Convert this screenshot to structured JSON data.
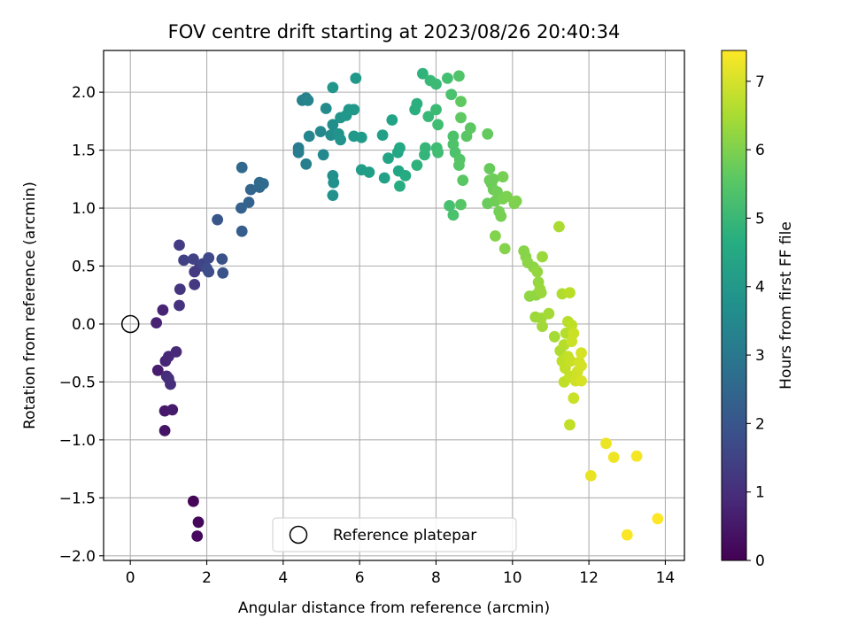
{
  "chart_data": {
    "type": "scatter",
    "title": "FOV centre drift starting at 2023/08/26 20:40:34",
    "xlabel": "Angular distance from reference (arcmin)",
    "ylabel": "Rotation from reference (arcmin)",
    "colorbar_label": "Hours from first FF file",
    "xlim": [
      -0.7,
      14.5
    ],
    "ylim": [
      -2.04,
      2.36
    ],
    "clim": [
      0,
      7.45
    ],
    "x_ticks": [
      0,
      2,
      4,
      6,
      8,
      10,
      12,
      14
    ],
    "y_ticks": [
      -2.0,
      -1.5,
      -1.0,
      -0.5,
      0.0,
      0.5,
      1.0,
      1.5,
      2.0
    ],
    "x_tick_labels": [
      "0",
      "2",
      "4",
      "6",
      "8",
      "10",
      "12",
      "14"
    ],
    "y_tick_labels": [
      "−2.0",
      "−1.5",
      "−1.0",
      "−0.5",
      "0.0",
      "0.5",
      "1.0",
      "1.5",
      "2.0"
    ],
    "colorbar_ticks": [
      0,
      1,
      2,
      3,
      4,
      5,
      6,
      7
    ],
    "colorbar_tick_labels": [
      "0",
      "1",
      "2",
      "3",
      "4",
      "5",
      "6",
      "7"
    ],
    "colormap": "viridis",
    "grid": true,
    "legend": {
      "position": "bottom-center",
      "entries": [
        "Reference platepar"
      ]
    },
    "reference_point": {
      "name": "Reference platepar",
      "x": 0,
      "y": 0
    },
    "series": [
      {
        "points": [
          [
            1.65,
            -1.53,
            0.1
          ],
          [
            1.78,
            -1.71,
            0.15
          ],
          [
            1.75,
            -1.83,
            0.2
          ],
          [
            0.9,
            -0.92,
            0.4
          ],
          [
            0.9,
            -0.75,
            0.5
          ],
          [
            1.1,
            -0.74,
            0.55
          ],
          [
            0.72,
            -0.4,
            0.6
          ],
          [
            0.68,
            0.01,
            0.7
          ],
          [
            0.85,
            0.12,
            0.75
          ],
          [
            0.92,
            -0.32,
            0.8
          ],
          [
            1.0,
            -0.28,
            0.85
          ],
          [
            1.2,
            -0.24,
            0.9
          ],
          [
            0.95,
            -0.45,
            0.95
          ],
          [
            1.05,
            -0.52,
            1.0
          ],
          [
            1.0,
            -0.47,
            1.0
          ],
          [
            1.28,
            0.16,
            1.1
          ],
          [
            1.3,
            0.3,
            1.15
          ],
          [
            1.68,
            0.34,
            1.2
          ],
          [
            1.68,
            0.45,
            1.25
          ],
          [
            1.82,
            0.5,
            1.3
          ],
          [
            1.28,
            0.68,
            1.3
          ],
          [
            1.4,
            0.55,
            1.4
          ],
          [
            1.65,
            0.56,
            1.45
          ],
          [
            1.9,
            0.52,
            1.5
          ],
          [
            2.05,
            0.57,
            1.6
          ],
          [
            2.05,
            0.45,
            1.7
          ],
          [
            2.0,
            0.48,
            1.75
          ],
          [
            2.4,
            0.56,
            1.85
          ],
          [
            2.42,
            0.44,
            1.9
          ],
          [
            2.28,
            0.9,
            2.0
          ],
          [
            2.92,
            0.8,
            2.2
          ],
          [
            2.9,
            1.0,
            2.3
          ],
          [
            3.1,
            1.05,
            2.35
          ],
          [
            3.15,
            1.16,
            2.4
          ],
          [
            3.38,
            1.18,
            2.5
          ],
          [
            3.38,
            1.22,
            2.55
          ],
          [
            3.48,
            1.21,
            2.6
          ],
          [
            2.92,
            1.35,
            2.5
          ],
          [
            4.4,
            1.52,
            3.1
          ],
          [
            4.4,
            1.48,
            3.15
          ],
          [
            4.6,
            1.38,
            3.2
          ],
          [
            4.5,
            1.93,
            3.25
          ],
          [
            4.6,
            1.95,
            3.3
          ],
          [
            4.65,
            1.93,
            3.35
          ],
          [
            4.68,
            1.62,
            3.4
          ],
          [
            4.98,
            1.66,
            3.45
          ],
          [
            5.05,
            1.46,
            3.5
          ],
          [
            5.12,
            1.86,
            3.55
          ],
          [
            5.25,
            1.63,
            3.6
          ],
          [
            5.3,
            1.72,
            3.65
          ],
          [
            5.3,
            1.28,
            3.7
          ],
          [
            5.32,
            1.22,
            3.72
          ],
          [
            5.3,
            1.11,
            3.75
          ],
          [
            5.45,
            1.64,
            3.8
          ],
          [
            5.5,
            1.59,
            3.82
          ],
          [
            5.5,
            1.78,
            3.85
          ],
          [
            5.65,
            1.8,
            3.9
          ],
          [
            5.72,
            1.85,
            3.92
          ],
          [
            5.85,
            1.62,
            3.95
          ],
          [
            5.85,
            1.85,
            3.97
          ],
          [
            5.9,
            2.12,
            4.0
          ],
          [
            6.05,
            1.61,
            4.05
          ],
          [
            6.05,
            1.33,
            4.1
          ],
          [
            6.25,
            1.31,
            4.15
          ],
          [
            5.3,
            2.04,
            3.9
          ],
          [
            6.6,
            1.63,
            4.2
          ],
          [
            6.65,
            1.26,
            4.25
          ],
          [
            6.85,
            1.76,
            4.3
          ],
          [
            6.75,
            1.43,
            4.35
          ],
          [
            7.0,
            1.48,
            4.4
          ],
          [
            7.02,
            1.32,
            4.45
          ],
          [
            7.05,
            1.52,
            4.5
          ],
          [
            7.2,
            1.28,
            4.55
          ],
          [
            7.05,
            1.19,
            4.6
          ],
          [
            7.45,
            1.85,
            4.65
          ],
          [
            7.5,
            1.9,
            4.7
          ],
          [
            7.5,
            1.37,
            4.75
          ],
          [
            7.65,
            2.16,
            4.8
          ],
          [
            7.7,
            1.46,
            4.85
          ],
          [
            7.72,
            1.52,
            4.9
          ],
          [
            7.8,
            1.79,
            4.95
          ],
          [
            7.85,
            2.1,
            5.0
          ],
          [
            8.0,
            2.07,
            5.02
          ],
          [
            8.0,
            1.85,
            5.05
          ],
          [
            8.02,
            1.52,
            5.1
          ],
          [
            8.05,
            1.48,
            5.12
          ],
          [
            8.05,
            1.72,
            5.15
          ],
          [
            8.3,
            2.12,
            5.2
          ],
          [
            8.35,
            1.02,
            5.25
          ],
          [
            8.45,
            0.94,
            5.3
          ],
          [
            8.5,
            1.48,
            5.32
          ],
          [
            8.45,
            1.62,
            5.35
          ],
          [
            8.45,
            1.55,
            5.37
          ],
          [
            8.6,
            2.14,
            5.4
          ],
          [
            8.62,
            1.42,
            5.42
          ],
          [
            8.6,
            1.37,
            5.45
          ],
          [
            8.65,
            1.03,
            5.47
          ],
          [
            8.7,
            1.24,
            5.5
          ],
          [
            8.8,
            1.62,
            5.52
          ],
          [
            8.9,
            1.69,
            5.55
          ],
          [
            8.65,
            1.78,
            5.57
          ],
          [
            8.4,
            1.98,
            5.3
          ],
          [
            8.65,
            1.92,
            5.6
          ],
          [
            9.35,
            1.64,
            5.65
          ],
          [
            9.4,
            1.34,
            5.7
          ],
          [
            9.35,
            1.04,
            5.72
          ],
          [
            9.4,
            1.24,
            5.75
          ],
          [
            9.45,
            1.21,
            5.77
          ],
          [
            9.5,
            1.16,
            5.8
          ],
          [
            9.55,
            1.06,
            5.82
          ],
          [
            9.6,
            1.14,
            5.85
          ],
          [
            9.65,
            0.97,
            5.87
          ],
          [
            9.7,
            0.93,
            5.9
          ],
          [
            9.75,
            1.27,
            5.92
          ],
          [
            9.75,
            1.08,
            5.95
          ],
          [
            9.85,
            1.1,
            5.97
          ],
          [
            10.05,
            1.04,
            6.0
          ],
          [
            10.1,
            1.06,
            6.02
          ],
          [
            9.55,
            0.76,
            6.05
          ],
          [
            9.8,
            0.65,
            6.07
          ],
          [
            9.5,
            1.25,
            5.8
          ],
          [
            10.3,
            0.63,
            6.1
          ],
          [
            10.35,
            0.58,
            6.12
          ],
          [
            10.4,
            0.53,
            6.15
          ],
          [
            10.55,
            0.49,
            6.17
          ],
          [
            10.45,
            0.24,
            6.2
          ],
          [
            10.62,
            0.25,
            6.22
          ],
          [
            10.65,
            0.45,
            6.25
          ],
          [
            10.68,
            0.36,
            6.27
          ],
          [
            10.72,
            0.3,
            6.3
          ],
          [
            10.78,
            0.58,
            6.32
          ],
          [
            10.6,
            0.06,
            6.35
          ],
          [
            10.75,
            0.05,
            6.37
          ],
          [
            10.78,
            -0.02,
            6.4
          ],
          [
            10.95,
            0.09,
            6.42
          ],
          [
            10.75,
            0.27,
            6.3
          ],
          [
            11.1,
            -0.11,
            6.45
          ],
          [
            11.22,
            0.84,
            6.5
          ],
          [
            11.25,
            -0.23,
            6.55
          ],
          [
            11.3,
            0.26,
            6.55
          ],
          [
            11.35,
            -0.18,
            6.6
          ],
          [
            11.4,
            -0.08,
            6.62
          ],
          [
            11.45,
            0.02,
            6.65
          ],
          [
            11.5,
            0.27,
            6.67
          ],
          [
            11.55,
            -0.01,
            6.7
          ],
          [
            11.3,
            -0.32,
            6.7
          ],
          [
            11.35,
            -0.5,
            6.72
          ],
          [
            11.38,
            -0.38,
            6.75
          ],
          [
            11.45,
            -0.28,
            6.77
          ],
          [
            11.5,
            -0.45,
            6.8
          ],
          [
            11.52,
            -0.32,
            6.82
          ],
          [
            11.55,
            -0.15,
            6.85
          ],
          [
            11.6,
            -0.08,
            6.87
          ],
          [
            11.65,
            -0.49,
            6.9
          ],
          [
            11.7,
            -0.41,
            6.92
          ],
          [
            11.75,
            -0.33,
            6.94
          ],
          [
            11.8,
            -0.36,
            6.96
          ],
          [
            11.8,
            -0.25,
            6.98
          ],
          [
            11.8,
            -0.49,
            7.0
          ],
          [
            11.5,
            -0.87,
            6.75
          ],
          [
            11.6,
            -0.64,
            6.85
          ],
          [
            12.05,
            -1.31,
            7.2
          ],
          [
            12.45,
            -1.03,
            7.25
          ],
          [
            12.65,
            -1.15,
            7.3
          ],
          [
            13.25,
            -1.14,
            7.35
          ],
          [
            13.0,
            -1.82,
            7.4
          ],
          [
            13.8,
            -1.68,
            7.45
          ]
        ]
      }
    ]
  }
}
